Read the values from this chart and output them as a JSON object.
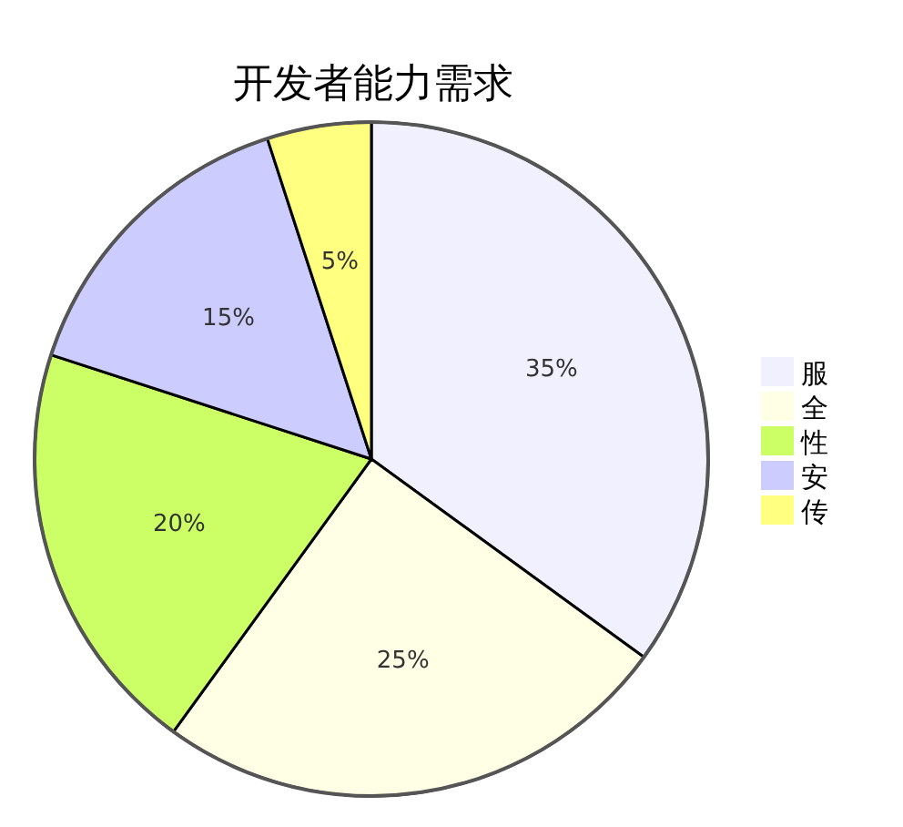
{
  "chart_data": {
    "type": "pie",
    "title": "开发者能力需求",
    "categories": [
      "服",
      "全",
      "性",
      "安",
      "传"
    ],
    "values": [
      35,
      25,
      20,
      15,
      5
    ],
    "colors": [
      "#f0f0ff",
      "#ffffe6",
      "#ccff66",
      "#ccccff",
      "#ffff80"
    ],
    "value_labels": [
      "35%",
      "25%",
      "20%",
      "15%",
      "5%"
    ],
    "legend": "right"
  }
}
